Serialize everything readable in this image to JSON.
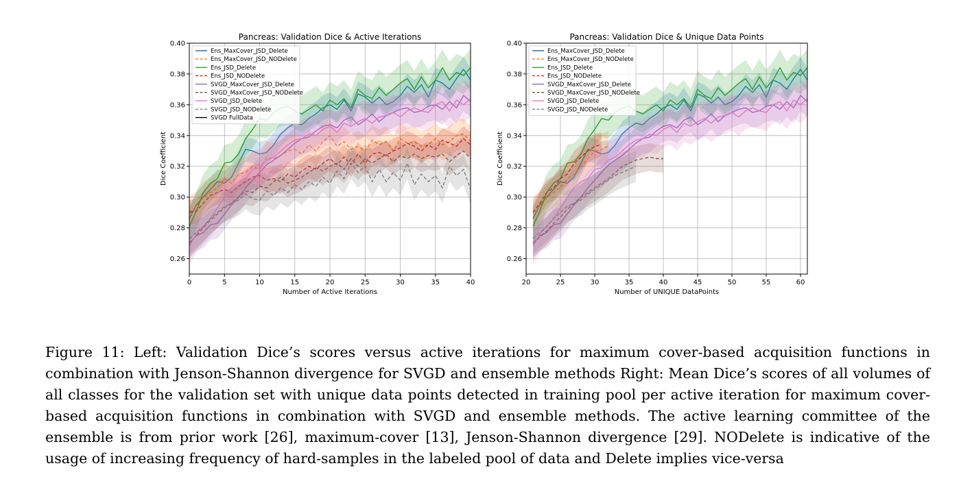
{
  "figure": {
    "caption": "Figure 11: Left: Validation Dice’s scores versus active iterations for maximum cover-based acquisition functions in combination with Jenson-Shannon divergence for SVGD and ensemble methods Right: Mean Dice’s scores of all volumes of all classes for the validation set with unique data points detected in training pool per active iteration for maximum cover-based acquisition functions in combination with SVGD and ensemble methods. The active learning committee of the ensemble is from prior work [26], maximum-cover [13], Jenson-Shannon divergence [29]. NODelete is indicative of the usage of increasing frequency of hard-samples in the labeled pool of data and Delete implies vice-versa"
  },
  "chart_data": [
    {
      "type": "line",
      "title": "Pancreas: Validation Dice & Active Iterations",
      "xlabel": "Number of Active Iterations",
      "ylabel": "Dice Coefficient",
      "xlim": [
        0,
        40
      ],
      "ylim": [
        0.25,
        0.4
      ],
      "xticks": [
        "0",
        "5",
        "10",
        "15",
        "20",
        "25",
        "30",
        "35",
        "40"
      ],
      "yticks": [
        "0.26",
        "0.28",
        "0.30",
        "0.32",
        "0.34",
        "0.36",
        "0.38",
        "0.40"
      ],
      "grid": true,
      "legend_position": "top-left",
      "shaded_band": true,
      "series": [
        {
          "name": "Ens_MaxCover_JSD_Delete",
          "color": "#1f77b4",
          "dash": "solid",
          "x_start": 0,
          "x_step": 1,
          "values": [
            0.286,
            0.295,
            0.3,
            0.305,
            0.31,
            0.309,
            0.313,
            0.322,
            0.331,
            0.33,
            0.328,
            0.329,
            0.334,
            0.341,
            0.345,
            0.348,
            0.347,
            0.351,
            0.354,
            0.358,
            0.36,
            0.357,
            0.363,
            0.356,
            0.367,
            0.365,
            0.361,
            0.365,
            0.36,
            0.362,
            0.366,
            0.372,
            0.368,
            0.373,
            0.365,
            0.376,
            0.374,
            0.37,
            0.377,
            0.383,
            0.376
          ]
        },
        {
          "name": "Ens_MaxCover_JSD_NODelete",
          "color": "#ff7f0e",
          "dash": "dashed",
          "x_start": 0,
          "x_step": 1,
          "values": [
            0.29,
            0.294,
            0.3,
            0.303,
            0.306,
            0.312,
            0.309,
            0.315,
            0.316,
            0.32,
            0.318,
            0.326,
            0.325,
            0.327,
            0.33,
            0.331,
            0.328,
            0.334,
            0.33,
            0.336,
            0.34,
            0.333,
            0.336,
            0.331,
            0.333,
            0.33,
            0.337,
            0.334,
            0.336,
            0.33,
            0.338,
            0.335,
            0.336,
            0.333,
            0.334,
            0.338,
            0.334,
            0.336,
            0.34,
            0.341,
            0.336
          ]
        },
        {
          "name": "Ens_JSD_Delete",
          "color": "#2ca02c",
          "dash": "solid",
          "x_start": 0,
          "x_step": 1,
          "values": [
            0.281,
            0.291,
            0.303,
            0.309,
            0.312,
            0.322,
            0.323,
            0.328,
            0.338,
            0.344,
            0.351,
            0.35,
            0.355,
            0.358,
            0.359,
            0.356,
            0.354,
            0.357,
            0.36,
            0.356,
            0.363,
            0.36,
            0.364,
            0.358,
            0.37,
            0.366,
            0.364,
            0.371,
            0.366,
            0.37,
            0.374,
            0.377,
            0.37,
            0.378,
            0.371,
            0.376,
            0.384,
            0.376,
            0.381,
            0.379,
            0.384
          ]
        },
        {
          "name": "Ens_JSD_NODelete",
          "color": "#d62728",
          "dash": "dashed",
          "x_start": 0,
          "x_step": 1,
          "values": [
            0.29,
            0.291,
            0.296,
            0.301,
            0.303,
            0.305,
            0.303,
            0.307,
            0.31,
            0.313,
            0.314,
            0.311,
            0.312,
            0.31,
            0.315,
            0.313,
            0.317,
            0.32,
            0.318,
            0.322,
            0.325,
            0.321,
            0.326,
            0.321,
            0.328,
            0.322,
            0.328,
            0.329,
            0.327,
            0.33,
            0.332,
            0.335,
            0.333,
            0.33,
            0.334,
            0.331,
            0.337,
            0.335,
            0.333,
            0.338,
            0.334
          ]
        },
        {
          "name": "SVGD_MaxCover_JSD_Delete",
          "color": "#9467bd",
          "dash": "solid",
          "x_start": 0,
          "x_step": 1,
          "values": [
            0.27,
            0.275,
            0.277,
            0.282,
            0.283,
            0.289,
            0.295,
            0.3,
            0.306,
            0.311,
            0.316,
            0.321,
            0.324,
            0.327,
            0.331,
            0.335,
            0.338,
            0.339,
            0.343,
            0.346,
            0.347,
            0.345,
            0.35,
            0.352,
            0.347,
            0.35,
            0.354,
            0.349,
            0.353,
            0.355,
            0.357,
            0.358,
            0.355,
            0.356,
            0.359,
            0.36,
            0.357,
            0.362,
            0.358,
            0.366,
            0.362
          ]
        },
        {
          "name": "SVGD_MaxCover_JSD_NODelete",
          "color": "#8c564b",
          "dash": "dashed",
          "x_start": 0,
          "x_step": 1,
          "values": [
            0.27,
            0.275,
            0.28,
            0.285,
            0.289,
            0.293,
            0.296,
            0.3,
            0.304,
            0.303,
            0.307,
            0.306,
            0.31,
            0.313,
            0.309,
            0.311,
            0.313,
            0.316,
            0.319,
            0.317,
            0.32,
            0.322,
            0.318,
            0.325,
            0.32,
            0.325,
            0.322,
            0.325,
            0.328,
            0.323,
            0.327,
            0.325,
            0.328,
            0.325,
            0.327,
            0.326,
            0.328,
            0.323,
            0.327,
            0.33,
            0.325
          ]
        },
        {
          "name": "SVGD_JSD_Delete",
          "color": "#e377c2",
          "dash": "solid",
          "x_start": 0,
          "x_step": 1,
          "values": [
            0.268,
            0.276,
            0.281,
            0.286,
            0.293,
            0.3,
            0.306,
            0.31,
            0.312,
            0.318,
            0.319,
            0.324,
            0.326,
            0.33,
            0.334,
            0.337,
            0.338,
            0.341,
            0.34,
            0.344,
            0.346,
            0.342,
            0.348,
            0.346,
            0.349,
            0.351,
            0.348,
            0.352,
            0.353,
            0.355,
            0.352,
            0.356,
            0.358,
            0.356,
            0.355,
            0.36,
            0.362,
            0.356,
            0.363,
            0.36,
            0.364
          ]
        },
        {
          "name": "SVGD_JSD_NODelete",
          "color": "#7f7f7f",
          "dash": "dashed",
          "x_start": 0,
          "x_step": 1,
          "values": [
            0.273,
            0.277,
            0.281,
            0.286,
            0.29,
            0.294,
            0.296,
            0.298,
            0.302,
            0.299,
            0.298,
            0.304,
            0.301,
            0.306,
            0.303,
            0.308,
            0.305,
            0.31,
            0.307,
            0.313,
            0.309,
            0.317,
            0.312,
            0.322,
            0.316,
            0.32,
            0.31,
            0.318,
            0.31,
            0.316,
            0.311,
            0.322,
            0.308,
            0.315,
            0.31,
            0.314,
            0.306,
            0.32,
            0.314,
            0.318,
            0.305
          ]
        },
        {
          "name": "SVGD FullData",
          "color": "#000000",
          "dash": "solid",
          "values": []
        }
      ]
    },
    {
      "type": "line",
      "title": "Pancreas: Validation Dice & Unique Data Points",
      "xlabel": "Number of UNIQUE DataPoints",
      "ylabel": "Dice Coefficient",
      "xlim": [
        20,
        61
      ],
      "ylim": [
        0.25,
        0.4
      ],
      "xticks": [
        "20",
        "25",
        "30",
        "35",
        "40",
        "45",
        "50",
        "55",
        "60"
      ],
      "yticks": [
        "0.26",
        "0.28",
        "0.30",
        "0.32",
        "0.34",
        "0.36",
        "0.38",
        "0.40"
      ],
      "grid": true,
      "legend_position": "top-left",
      "shaded_band": true,
      "series": [
        {
          "name": "Ens_MaxCover_JSD_Delete",
          "color": "#1f77b4",
          "dash": "solid",
          "x_start": 21,
          "x_step": 1,
          "values": [
            0.286,
            0.295,
            0.3,
            0.305,
            0.31,
            0.309,
            0.313,
            0.322,
            0.331,
            0.33,
            0.328,
            0.329,
            0.334,
            0.341,
            0.345,
            0.348,
            0.347,
            0.351,
            0.354,
            0.358,
            0.36,
            0.357,
            0.363,
            0.356,
            0.367,
            0.365,
            0.361,
            0.365,
            0.36,
            0.362,
            0.366,
            0.372,
            0.368,
            0.373,
            0.365,
            0.376,
            0.374,
            0.37,
            0.377,
            0.383,
            0.376
          ]
        },
        {
          "name": "Ens_MaxCover_JSD_NODelete",
          "color": "#ff7f0e",
          "dash": "dashed",
          "x_start": 21,
          "x_step": 1,
          "values": [
            0.29,
            0.294,
            0.3,
            0.303,
            0.306,
            0.312,
            0.315,
            0.32,
            0.325,
            0.33,
            0.331,
            0.333
          ]
        },
        {
          "name": "Ens_JSD_Delete",
          "color": "#2ca02c",
          "dash": "solid",
          "x_start": 21,
          "x_step": 1,
          "values": [
            0.281,
            0.291,
            0.303,
            0.309,
            0.312,
            0.322,
            0.323,
            0.328,
            0.338,
            0.344,
            0.351,
            0.35,
            0.355,
            0.358,
            0.359,
            0.356,
            0.354,
            0.357,
            0.36,
            0.356,
            0.363,
            0.36,
            0.364,
            0.358,
            0.37,
            0.366,
            0.364,
            0.371,
            0.366,
            0.37,
            0.374,
            0.377,
            0.37,
            0.378,
            0.371,
            0.376,
            0.384,
            0.376,
            0.381,
            0.379,
            0.384
          ]
        },
        {
          "name": "Ens_JSD_NODelete",
          "color": "#d62728",
          "dash": "dashed",
          "x_start": 21,
          "x_step": 1,
          "values": [
            0.29,
            0.296,
            0.303,
            0.306,
            0.312,
            0.315,
            0.322,
            0.326,
            0.33,
            0.333,
            0.334
          ]
        },
        {
          "name": "SVGD_MaxCover_JSD_Delete",
          "color": "#9467bd",
          "dash": "solid",
          "x_start": 21,
          "x_step": 1,
          "values": [
            0.27,
            0.275,
            0.277,
            0.282,
            0.283,
            0.289,
            0.295,
            0.3,
            0.306,
            0.311,
            0.316,
            0.321,
            0.324,
            0.327,
            0.331,
            0.335,
            0.338,
            0.339,
            0.343,
            0.346,
            0.347,
            0.345,
            0.35,
            0.352,
            0.347,
            0.35,
            0.354,
            0.349,
            0.353,
            0.355,
            0.357,
            0.358,
            0.355,
            0.356,
            0.359,
            0.36,
            0.357,
            0.362,
            0.358,
            0.366,
            0.362
          ]
        },
        {
          "name": "SVGD_MaxCover_JSD_NODelete",
          "color": "#8c564b",
          "dash": "dashed",
          "x_start": 21,
          "x_step": 1,
          "values": [
            0.27,
            0.274,
            0.278,
            0.283,
            0.287,
            0.292,
            0.296,
            0.3,
            0.303,
            0.306,
            0.309,
            0.312,
            0.316,
            0.32,
            0.322,
            0.324,
            0.325,
            0.326,
            0.325,
            0.325
          ]
        },
        {
          "name": "SVGD_JSD_Delete",
          "color": "#e377c2",
          "dash": "solid",
          "x_start": 21,
          "x_step": 1,
          "values": [
            0.268,
            0.276,
            0.281,
            0.286,
            0.293,
            0.3,
            0.306,
            0.31,
            0.312,
            0.318,
            0.319,
            0.324,
            0.326,
            0.33,
            0.334,
            0.337,
            0.338,
            0.341,
            0.34,
            0.344,
            0.346,
            0.342,
            0.348,
            0.346,
            0.349,
            0.351,
            0.348,
            0.352,
            0.353,
            0.355,
            0.352,
            0.356,
            0.358,
            0.356,
            0.355,
            0.36,
            0.362,
            0.356,
            0.363,
            0.36,
            0.364
          ]
        },
        {
          "name": "SVGD_JSD_NODelete",
          "color": "#7f7f7f",
          "dash": "dashed",
          "x_start": 21,
          "x_step": 1,
          "values": [
            0.273,
            0.277,
            0.281,
            0.286,
            0.29,
            0.294,
            0.296,
            0.298,
            0.302,
            0.305,
            0.308,
            0.311,
            0.314,
            0.316,
            0.318,
            0.32
          ]
        }
      ]
    }
  ]
}
